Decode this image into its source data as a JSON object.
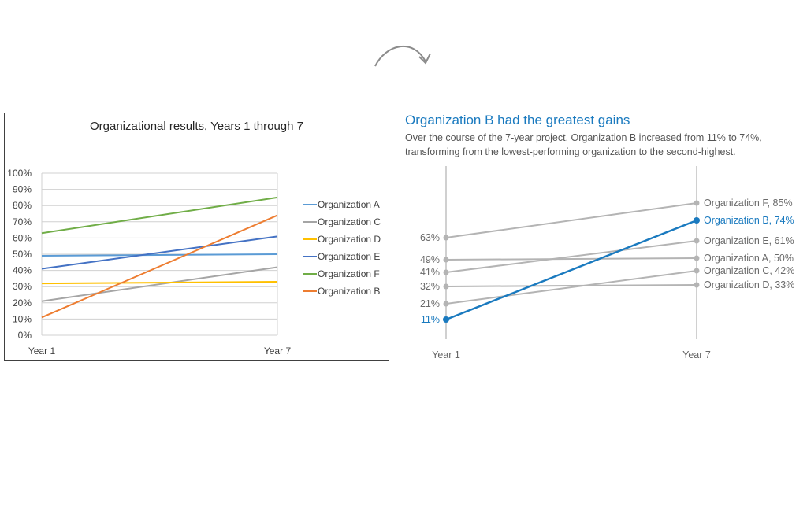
{
  "chart_data": [
    {
      "type": "line",
      "title": "Organizational results, Years 1 through 7",
      "categories": [
        "Year 1",
        "Year 7"
      ],
      "ylim": [
        0,
        100
      ],
      "yticks": [
        "0%",
        "10%",
        "20%",
        "30%",
        "40%",
        "50%",
        "60%",
        "70%",
        "80%",
        "90%",
        "100%"
      ],
      "grid": true,
      "legend": "right",
      "series": [
        {
          "name": "Organization A",
          "values": [
            49,
            50
          ],
          "color": "#5b9bd5"
        },
        {
          "name": "Organization C",
          "values": [
            21,
            42
          ],
          "color": "#a5a5a5"
        },
        {
          "name": "Organization D",
          "values": [
            32,
            33
          ],
          "color": "#ffc000"
        },
        {
          "name": "Organization E",
          "values": [
            41,
            61
          ],
          "color": "#4472c4"
        },
        {
          "name": "Organization F",
          "values": [
            63,
            85
          ],
          "color": "#70ad47"
        },
        {
          "name": "Organization B",
          "values": [
            11,
            74
          ],
          "color": "#ed7d31"
        }
      ]
    },
    {
      "type": "line",
      "title": "Organization B had the greatest gains",
      "subtitle_lines": [
        "Over the course of the 7-year project, Organization B increased from 11% to 74%,",
        "transforming from the lowest-performing organization to the second-highest."
      ],
      "categories": [
        "Year 1",
        "Year 7"
      ],
      "ylim": [
        0,
        100
      ],
      "highlight": "Organization B",
      "highlight_color": "#1a7abf",
      "muted_color": "#b4b4b4",
      "series": [
        {
          "name": "Organization F",
          "values": [
            63,
            85
          ],
          "start_label": "63%",
          "end_label": "Organization F, 85%"
        },
        {
          "name": "Organization A",
          "values": [
            49,
            50
          ],
          "start_label": "49%",
          "end_label": "Organization A, 50%"
        },
        {
          "name": "Organization E",
          "values": [
            41,
            61
          ],
          "start_label": "41%",
          "end_label": "Organization E, 61%"
        },
        {
          "name": "Organization D",
          "values": [
            32,
            33
          ],
          "start_label": "32%",
          "end_label": "Organization D, 33%"
        },
        {
          "name": "Organization C",
          "values": [
            21,
            42
          ],
          "start_label": "21%",
          "end_label": "Organization C, 42%"
        },
        {
          "name": "Organization B",
          "values": [
            11,
            74
          ],
          "start_label": "11%",
          "end_label": "Organization B, 74%"
        }
      ]
    }
  ]
}
